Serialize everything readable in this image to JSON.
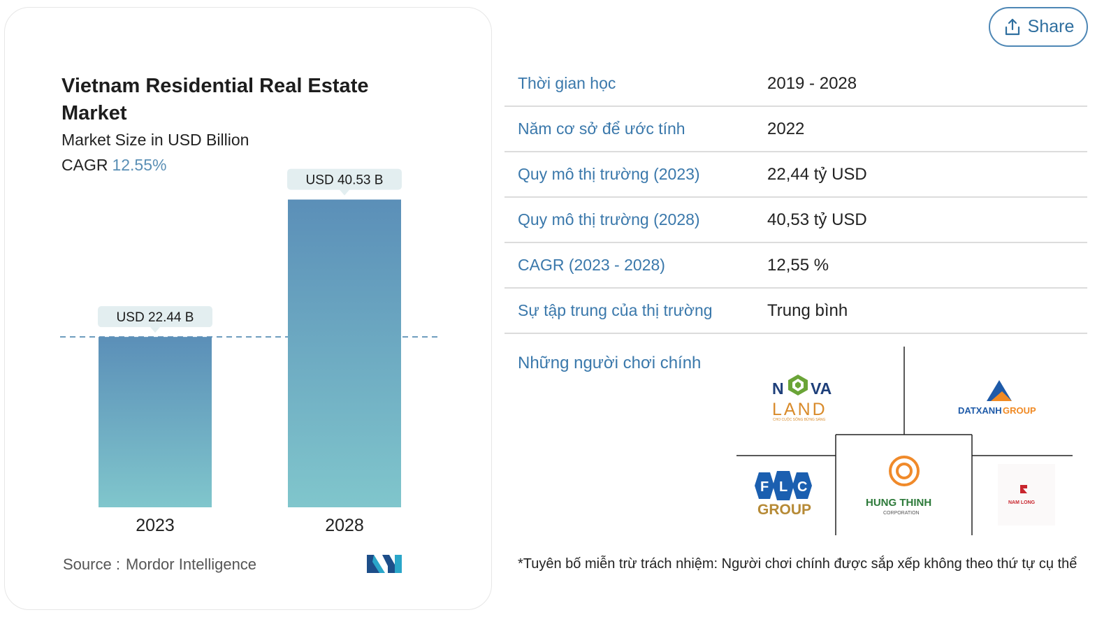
{
  "share": {
    "label": "Share",
    "icon": "share-icon"
  },
  "chart_data": {
    "type": "bar",
    "title": "Vietnam Residential Real Estate Market",
    "subtitle": "Market Size in USD Billion",
    "cagr_label": "CAGR",
    "cagr_value": "12.55%",
    "categories": [
      "2023",
      "2028"
    ],
    "values": [
      22.44,
      40.53
    ],
    "data_labels": [
      "USD 22.44 B",
      "USD 40.53 B"
    ],
    "ylim": [
      0,
      45
    ],
    "grid": false,
    "colors": {
      "bar_top": "#5b8fb8",
      "bar_bottom": "#80c6cc",
      "label_bg": "#e3eef0",
      "dash": "#5a8fb5"
    },
    "source_label": "Source :",
    "source_name": "Mordor Intelligence"
  },
  "table": {
    "rows": [
      {
        "label": "Thời gian học",
        "value": "2019 - 2028"
      },
      {
        "label": "Năm cơ sở để ước tính",
        "value": "2022"
      },
      {
        "label": "Quy mô thị trường (2023)",
        "value": "22,44 tỷ USD"
      },
      {
        "label": "Quy mô thị trường (2028)",
        "value": "40,53 tỷ USD"
      },
      {
        "label": "CAGR (2023 - 2028)",
        "value": "12,55 %"
      },
      {
        "label": "Sự tập trung của thị trường",
        "value": "Trung bình"
      }
    ]
  },
  "players": {
    "label": "Những người chơi chính",
    "logos": {
      "novaland": {
        "top_left": "N",
        "top_right": "VA",
        "bottom": "LAND",
        "tagline": "CHO CUỘC SỐNG BỪNG SÁNG"
      },
      "datxanh": {
        "name_left": "DATXANH",
        "name_right": "GROUP"
      },
      "flc": {
        "letters": [
          "F",
          "L",
          "C"
        ],
        "bottom": "GROUP"
      },
      "hungthinh": {
        "name": "HUNG THINH",
        "sub": "CORPORATION"
      },
      "namlong": {
        "name": "NAM LONG"
      }
    },
    "colors": {
      "novaland_green": "#6aa437",
      "novaland_orange": "#d98b2b",
      "datxanh_blue": "#1e5aa8",
      "datxanh_orange": "#f08a24",
      "flc_blue": "#1b5fb0",
      "flc_gold": "#b68a36",
      "hungthinh_orange": "#f08a2a",
      "hungthinh_green": "#2d7a3a",
      "namlong_red": "#c8262e"
    }
  },
  "disclaimer": "*Tuyên bố miễn trừ trách nhiệm: Người chơi chính được sắp xếp không theo thứ tự cụ thể"
}
